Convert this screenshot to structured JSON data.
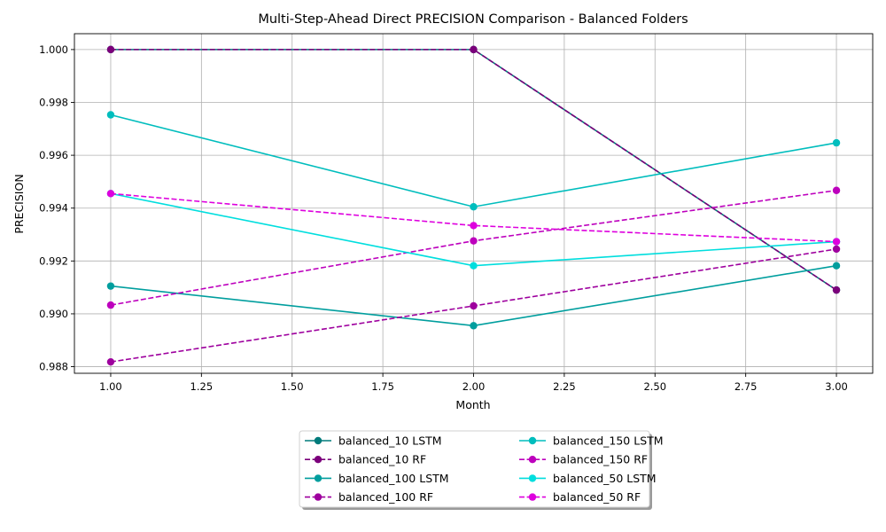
{
  "chart_data": {
    "type": "line",
    "title": "Multi-Step-Ahead Direct PRECISION Comparison - Balanced Folders",
    "xlabel": "Month",
    "ylabel": "PRECISION",
    "x": [
      1,
      2,
      3
    ],
    "xlim": [
      0.9,
      3.1
    ],
    "ylim": [
      0.98775,
      1.0006
    ],
    "xticks": [
      1.0,
      1.25,
      1.5,
      1.75,
      2.0,
      2.25,
      2.5,
      2.75,
      3.0
    ],
    "xtick_labels": [
      "1.00",
      "1.25",
      "1.50",
      "1.75",
      "2.00",
      "2.25",
      "2.50",
      "2.75",
      "3.00"
    ],
    "yticks": [
      0.988,
      0.99,
      0.992,
      0.994,
      0.996,
      0.998,
      1.0
    ],
    "ytick_labels": [
      "0.988",
      "0.990",
      "0.992",
      "0.994",
      "0.996",
      "0.998",
      "1.000"
    ],
    "grid": true,
    "legend_position": "bottom-center",
    "legend_columns": 2,
    "series": [
      {
        "name": "balanced_10 LSTM",
        "values": [
          1.0,
          1.0,
          0.9909
        ],
        "color": "#007b7b",
        "style": "solid"
      },
      {
        "name": "balanced_10 RF",
        "values": [
          1.0,
          1.0,
          0.9909
        ],
        "color": "#7b007b",
        "style": "dashed"
      },
      {
        "name": "balanced_100 LSTM",
        "values": [
          0.99105,
          0.98955,
          0.99182
        ],
        "color": "#009e9e",
        "style": "solid"
      },
      {
        "name": "balanced_100 RF",
        "values": [
          0.98818,
          0.9903,
          0.99245
        ],
        "color": "#9e009e",
        "style": "dashed"
      },
      {
        "name": "balanced_150 LSTM",
        "values": [
          0.99753,
          0.99405,
          0.99647
        ],
        "color": "#00bdbd",
        "style": "solid"
      },
      {
        "name": "balanced_150 RF",
        "values": [
          0.99033,
          0.99276,
          0.99467
        ],
        "color": "#bd00bd",
        "style": "dashed"
      },
      {
        "name": "balanced_50 LSTM",
        "values": [
          0.99455,
          0.99182,
          0.99273
        ],
        "color": "#00dede",
        "style": "solid"
      },
      {
        "name": "balanced_50 RF",
        "values": [
          0.99455,
          0.99334,
          0.99273
        ],
        "color": "#de00de",
        "style": "dashed"
      }
    ]
  }
}
